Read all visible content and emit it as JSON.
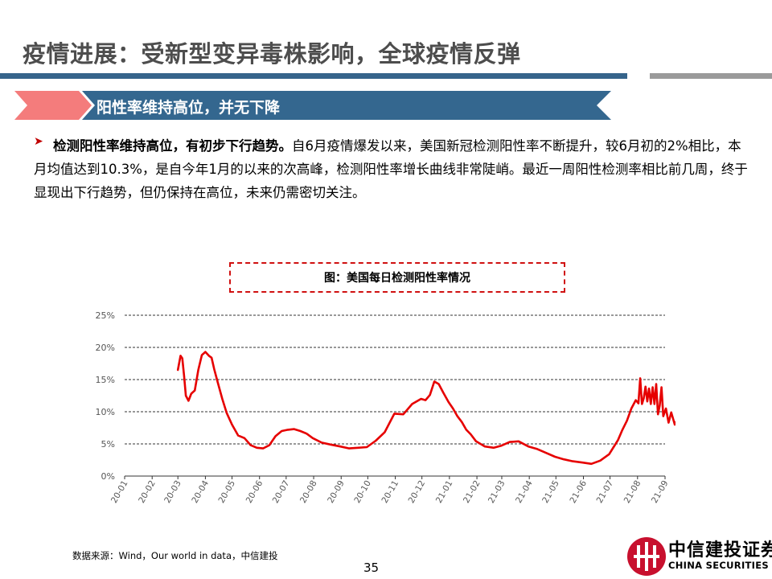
{
  "title": "疫情进展：受新型变异毒株影响，全球疫情反弹",
  "banner": "阳性率维持高位，并无下降",
  "bullet_glyph": "➤",
  "body": {
    "lead": "检测阳性率维持高位，有初步下行趋势。",
    "text": "自6月疫情爆发以来，美国新冠检测阳性率不断提升，较6月初的2%相比，本月均值达到10.3%，是自今年1月的以来的次高峰，检测阳性率增长曲线非常陡峭。最近一周阳性检测率相比前几周，终于显现出下行趋势，但仍保持在高位，未来仍需密切关注。"
  },
  "chart_data": {
    "type": "line",
    "title": "图：美国每日检测阳性率情况",
    "xlabel": "",
    "ylabel": "",
    "ylim": [
      0,
      25
    ],
    "y_ticks": [
      "0%",
      "5%",
      "10%",
      "15%",
      "20%",
      "25%"
    ],
    "x_ticks": [
      "20-01",
      "20-02",
      "20-03",
      "20-04",
      "20-05",
      "20-06",
      "20-07",
      "20-08",
      "20-09",
      "20-10",
      "20-11",
      "20-12",
      "21-01",
      "21-02",
      "21-03",
      "21-04",
      "21-05",
      "21-06",
      "21-07",
      "21-08",
      "21-09"
    ],
    "grid": "horizontal-dashed",
    "color": "#e60000",
    "series": [
      {
        "x": [
          "20-03-01",
          "20-03-04",
          "20-03-06",
          "20-03-08",
          "20-03-10",
          "20-03-13",
          "20-03-16",
          "20-03-20",
          "20-03-24",
          "20-03-28",
          "20-04-01",
          "20-04-05",
          "20-04-08",
          "20-04-11",
          "20-04-15",
          "20-04-20",
          "20-04-25",
          "20-05-01",
          "20-05-08",
          "20-05-15",
          "20-05-22",
          "20-05-29",
          "20-06-05",
          "20-06-12",
          "20-06-19",
          "20-06-26",
          "20-07-03",
          "20-07-10",
          "20-07-17",
          "20-07-24",
          "20-07-31",
          "20-08-10",
          "20-08-20",
          "20-08-31",
          "20-09-10",
          "20-09-20",
          "20-09-30",
          "20-10-10",
          "20-10-20",
          "20-10-31",
          "20-11-10",
          "20-11-20",
          "20-11-30",
          "20-12-05",
          "20-12-10",
          "20-12-15",
          "20-12-20",
          "20-12-25",
          "20-12-31",
          "21-01-05",
          "21-01-10",
          "21-01-15",
          "21-01-20",
          "21-01-25",
          "21-01-31",
          "21-02-10",
          "21-02-20",
          "21-02-28",
          "21-03-10",
          "21-03-20",
          "21-03-31",
          "21-04-10",
          "21-04-20",
          "21-04-30",
          "21-05-10",
          "21-05-20",
          "21-05-31",
          "21-06-10",
          "21-06-20",
          "21-06-30",
          "21-07-05",
          "21-07-10",
          "21-07-15",
          "21-07-20",
          "21-07-25",
          "21-07-30",
          "21-08-02",
          "21-08-04",
          "21-08-06",
          "21-08-08",
          "21-08-10",
          "21-08-12",
          "21-08-14",
          "21-08-16",
          "21-08-18",
          "21-08-20",
          "21-08-22",
          "21-08-24",
          "21-08-26",
          "21-08-28",
          "21-08-30",
          "21-09-02",
          "21-09-05",
          "21-09-08",
          "21-09-12",
          "21-09-16"
        ],
        "values": [
          16.5,
          18.7,
          18.3,
          15.6,
          12.5,
          11.7,
          12.8,
          13.3,
          16.5,
          18.8,
          19.3,
          18.7,
          18.4,
          16.6,
          14.5,
          12.0,
          9.8,
          8.0,
          6.3,
          5.9,
          4.8,
          4.4,
          4.3,
          4.8,
          6.2,
          7.0,
          7.2,
          7.3,
          7.0,
          6.6,
          5.9,
          5.2,
          4.9,
          4.6,
          4.3,
          4.4,
          4.5,
          5.5,
          6.8,
          9.7,
          9.6,
          11.2,
          12.0,
          11.8,
          12.6,
          14.7,
          14.3,
          13.0,
          11.5,
          10.5,
          9.3,
          8.4,
          7.2,
          6.5,
          5.4,
          4.6,
          4.4,
          4.7,
          5.3,
          5.4,
          4.6,
          4.2,
          3.6,
          3.0,
          2.6,
          2.3,
          2.1,
          1.9,
          2.4,
          3.4,
          4.5,
          5.6,
          7.2,
          8.6,
          10.5,
          11.8,
          11.3,
          15.2,
          11.2,
          12.1,
          13.9,
          11.6,
          13.6,
          11.2,
          13.8,
          11.2,
          14.3,
          9.6,
          11.0,
          13.8,
          9.3,
          10.5,
          8.3,
          9.9,
          8.0,
          9.2
        ]
      }
    ]
  },
  "source": "数据来源：Wind，Our world in data，中信建投",
  "page_number": "35",
  "logo": {
    "cn": "中信建投证券",
    "en": "CHINA SECURITIES",
    "color": "#c8102e"
  }
}
